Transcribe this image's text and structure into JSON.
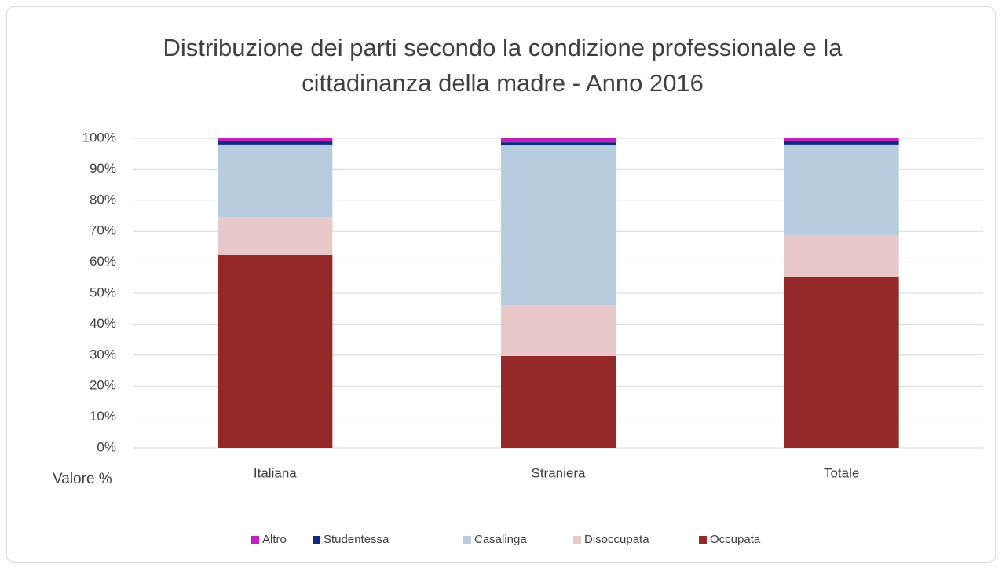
{
  "chart_data": {
    "type": "bar",
    "stacked": true,
    "title": "Distribuzione dei parti secondo la condizione professionale e la cittadinanza della madre - Anno 2016",
    "y_label": "Valore %",
    "categories": [
      "Italiana",
      "Straniera",
      "Totale"
    ],
    "series": [
      {
        "name": "Occupata",
        "color": "#952828",
        "values": [
          62.2,
          29.7,
          55.3
        ]
      },
      {
        "name": "Disoccupata",
        "color": "#e8c8c8",
        "values": [
          12.4,
          16.5,
          13.5
        ]
      },
      {
        "name": "Casalinga",
        "color": "#b8cce0",
        "values": [
          23.4,
          51.5,
          29.2
        ]
      },
      {
        "name": "Studentessa",
        "color": "#0d2b7f",
        "values": [
          1.2,
          1.0,
          1.2
        ]
      },
      {
        "name": "Altro",
        "color": "#c020c0",
        "values": [
          0.8,
          1.3,
          0.8
        ]
      }
    ],
    "ylim": [
      0,
      100
    ],
    "yticks": [
      {
        "value": 0,
        "label": "0%"
      },
      {
        "value": 10,
        "label": "10%"
      },
      {
        "value": 20,
        "label": "20%"
      },
      {
        "value": 30,
        "label": "30%"
      },
      {
        "value": 40,
        "label": "40%"
      },
      {
        "value": 50,
        "label": "50%"
      },
      {
        "value": 60,
        "label": "60%"
      },
      {
        "value": 70,
        "label": "70%"
      },
      {
        "value": 80,
        "label": "80%"
      },
      {
        "value": 90,
        "label": "90%"
      },
      {
        "value": 100,
        "label": "100%"
      }
    ],
    "grid": true,
    "legend": "bottom"
  }
}
